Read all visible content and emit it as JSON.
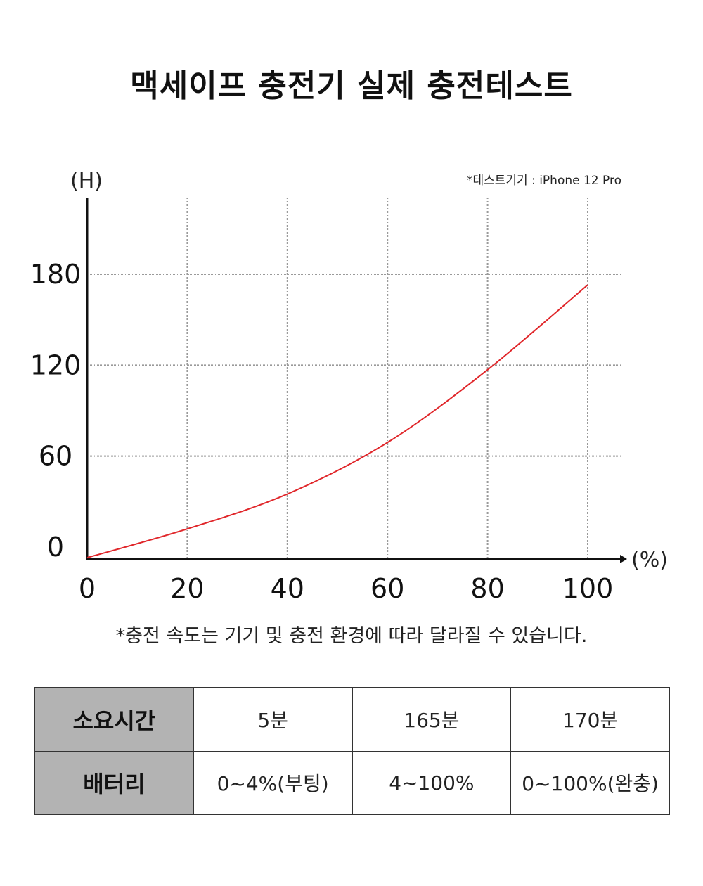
{
  "title": "맥세이프 충전기 실제 충전테스트",
  "chart_data": {
    "type": "line",
    "ylabel": "(H)",
    "xlabel": "(%)",
    "device_note": "*테스트기기 : iPhone 12 Pro",
    "x_ticks": [
      0,
      20,
      40,
      60,
      80,
      100
    ],
    "y_ticks": [
      0,
      60,
      120,
      180
    ],
    "xlim": [
      0,
      100
    ],
    "ylim": [
      0,
      180
    ],
    "grid": true,
    "series": [
      {
        "color": "#e0262a",
        "points": [
          [
            0,
            -7
          ],
          [
            20,
            12
          ],
          [
            40,
            35
          ],
          [
            60,
            69
          ],
          [
            80,
            117
          ],
          [
            100,
            173
          ]
        ]
      }
    ]
  },
  "footnote": "*충전 속도는 기기 및 충전 환경에 따라 달라질 수 있습니다.",
  "table": {
    "rows": [
      {
        "header": "소요시간",
        "cells": [
          "5분",
          "165분",
          "170분"
        ]
      },
      {
        "header": "배터리",
        "cells": [
          "0~4%(부팅)",
          "4~100%",
          "0~100%(완충)"
        ]
      }
    ]
  }
}
